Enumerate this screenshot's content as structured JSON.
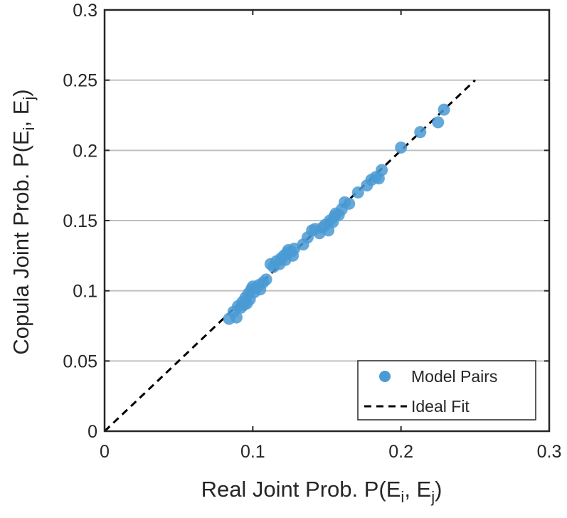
{
  "chart_data": {
    "type": "scatter",
    "title": "",
    "xlabel": {
      "pre": "Real Joint Prob. P(E",
      "sub1": "i",
      "mid": ", E",
      "sub2": "j",
      "post": ")"
    },
    "ylabel": {
      "pre": "Copula Joint Prob. P(E",
      "sub1": "i",
      "mid": ", E",
      "sub2": "j",
      "post": ")"
    },
    "xlim": [
      0,
      0.3
    ],
    "ylim": [
      0,
      0.3
    ],
    "xticks": [
      0,
      0.1,
      0.2,
      0.3
    ],
    "xtick_labels": [
      "0",
      "0.1",
      "0.2",
      "0.3"
    ],
    "yticks": [
      0,
      0.05,
      0.1,
      0.15,
      0.2,
      0.25,
      0.3
    ],
    "ytick_labels": [
      "0",
      "0.05",
      "0.1",
      "0.15",
      "0.2",
      "0.25",
      "0.3"
    ],
    "grid": {
      "horizontal": true,
      "vertical": false
    },
    "legend": {
      "position": "bottom-right",
      "entries": [
        "Model Pairs",
        "Ideal Fit"
      ]
    },
    "colors": {
      "points": "#4a9ad3",
      "ideal_line": "#000000",
      "grid": "#c0c0c0",
      "axes": "#262626"
    },
    "series": [
      {
        "name": "Model Pairs",
        "type": "scatter",
        "points": [
          [
            0.084,
            0.08
          ],
          [
            0.087,
            0.085
          ],
          [
            0.089,
            0.081
          ],
          [
            0.09,
            0.089
          ],
          [
            0.092,
            0.088
          ],
          [
            0.093,
            0.092
          ],
          [
            0.094,
            0.09
          ],
          [
            0.095,
            0.095
          ],
          [
            0.096,
            0.091
          ],
          [
            0.097,
            0.098
          ],
          [
            0.098,
            0.094
          ],
          [
            0.099,
            0.101
          ],
          [
            0.1,
            0.103
          ],
          [
            0.101,
            0.099
          ],
          [
            0.102,
            0.102
          ],
          [
            0.104,
            0.104
          ],
          [
            0.105,
            0.101
          ],
          [
            0.107,
            0.106
          ],
          [
            0.109,
            0.108
          ],
          [
            0.112,
            0.119
          ],
          [
            0.114,
            0.117
          ],
          [
            0.116,
            0.121
          ],
          [
            0.118,
            0.119
          ],
          [
            0.119,
            0.123
          ],
          [
            0.121,
            0.125
          ],
          [
            0.122,
            0.122
          ],
          [
            0.123,
            0.127
          ],
          [
            0.124,
            0.129
          ],
          [
            0.126,
            0.128
          ],
          [
            0.127,
            0.125
          ],
          [
            0.128,
            0.13
          ],
          [
            0.134,
            0.133
          ],
          [
            0.137,
            0.138
          ],
          [
            0.14,
            0.143
          ],
          [
            0.142,
            0.144
          ],
          [
            0.145,
            0.141
          ],
          [
            0.147,
            0.145
          ],
          [
            0.149,
            0.147
          ],
          [
            0.151,
            0.143
          ],
          [
            0.152,
            0.15
          ],
          [
            0.154,
            0.149
          ],
          [
            0.155,
            0.153
          ],
          [
            0.156,
            0.155
          ],
          [
            0.158,
            0.154
          ],
          [
            0.16,
            0.158
          ],
          [
            0.162,
            0.163
          ],
          [
            0.165,
            0.162
          ],
          [
            0.171,
            0.17
          ],
          [
            0.177,
            0.175
          ],
          [
            0.18,
            0.179
          ],
          [
            0.183,
            0.181
          ],
          [
            0.185,
            0.18
          ],
          [
            0.187,
            0.186
          ],
          [
            0.2,
            0.202
          ],
          [
            0.213,
            0.213
          ],
          [
            0.225,
            0.22
          ],
          [
            0.229,
            0.229
          ]
        ]
      },
      {
        "name": "Ideal Fit",
        "type": "line",
        "style": "dashed",
        "points": [
          [
            0,
            0
          ],
          [
            0.25,
            0.25
          ]
        ]
      }
    ]
  }
}
